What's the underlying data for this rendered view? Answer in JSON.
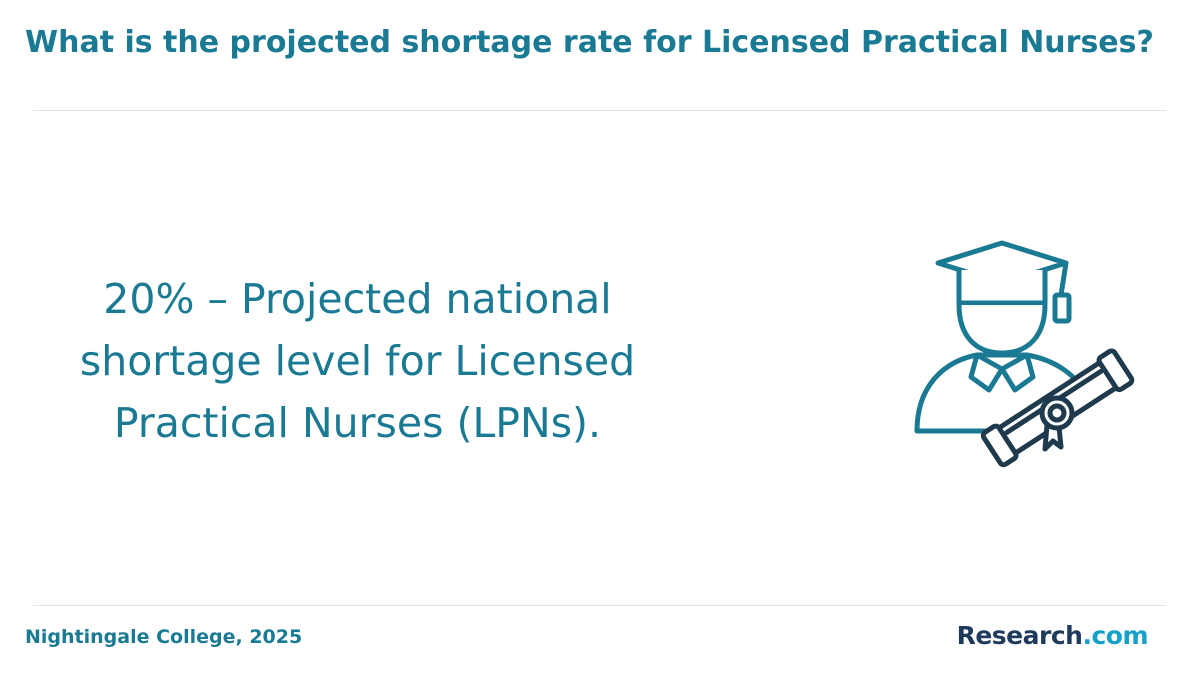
{
  "header": {
    "title": "What is the projected shortage rate for Licensed Practical Nurses?"
  },
  "main": {
    "statement": "20% – Projected national shortage level for Licensed Practical Nurses (LPNs).",
    "illustration": {
      "icon": "graduate-with-diploma-icon",
      "colors": {
        "primary": "#1a7a94",
        "secondary": "#1e3a4c"
      }
    }
  },
  "footer": {
    "source": "Nightingale College, 2025",
    "logo": {
      "brand": "Research",
      "tld": ".com",
      "brand_color": "#1e3a5c",
      "tld_color": "#14a0c8"
    }
  },
  "colors": {
    "accent": "#1a7a94",
    "divider": "#e3e3e3",
    "background": "#ffffff"
  }
}
